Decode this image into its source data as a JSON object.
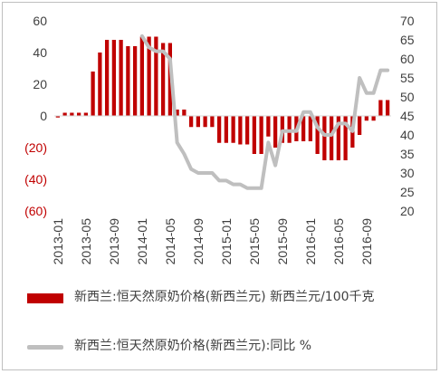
{
  "chart_data": {
    "type": "bar",
    "categories": [
      "2013-01",
      "2013-02",
      "2013-03",
      "2013-04",
      "2013-05",
      "2013-06",
      "2013-07",
      "2013-08",
      "2013-09",
      "2013-10",
      "2013-11",
      "2013-12",
      "2014-01",
      "2014-02",
      "2014-03",
      "2014-04",
      "2014-05",
      "2014-06",
      "2014-07",
      "2014-08",
      "2014-09",
      "2014-10",
      "2014-11",
      "2014-12",
      "2015-01",
      "2015-02",
      "2015-03",
      "2015-04",
      "2015-05",
      "2015-06",
      "2015-07",
      "2015-08",
      "2015-09",
      "2015-10",
      "2015-11",
      "2015-12",
      "2016-01",
      "2016-02",
      "2016-03",
      "2016-04",
      "2016-05",
      "2016-06",
      "2016-07",
      "2016-08",
      "2016-09",
      "2016-10",
      "2016-11",
      "2016-12"
    ],
    "x_tick_labels": [
      "2013-01",
      "2013-05",
      "2013-09",
      "2014-01",
      "2014-05",
      "2014-09",
      "2015-01",
      "2015-05",
      "2015-09",
      "2016-01",
      "2016-05",
      "2016-09"
    ],
    "series": [
      {
        "name": "新西兰:恒天然原奶价格(新西兰元) 新西兰元/100千克",
        "type": "bar",
        "axis": "left",
        "color": "#c00000",
        "values": [
          -1,
          2,
          2,
          2,
          2,
          28,
          40,
          48,
          48,
          48,
          44,
          44,
          50,
          50,
          50,
          46,
          46,
          4,
          4,
          -7,
          -7,
          -7,
          -7,
          -17,
          -17,
          -17,
          -18,
          -18,
          -24,
          -24,
          -13,
          -20,
          -17,
          -17,
          -16,
          -16,
          -16,
          -24,
          -28,
          -28,
          -28,
          -28,
          -20,
          -12,
          -3,
          -3,
          10,
          10
        ]
      },
      {
        "name": "新西兰:恒天然原奶价格(新西兰元):同比 %",
        "type": "line",
        "axis": "right",
        "color": "#bfbfbf",
        "values": [
          null,
          null,
          null,
          null,
          null,
          null,
          null,
          null,
          null,
          null,
          null,
          null,
          66,
          63,
          62,
          62,
          60,
          38,
          35,
          31,
          30,
          30,
          30,
          28,
          28,
          27,
          27,
          26,
          26,
          26,
          38,
          32,
          41,
          41,
          41,
          46,
          46,
          42,
          40,
          40,
          43,
          43,
          41,
          55,
          51,
          51,
          57,
          57
        ]
      }
    ],
    "left_axis": {
      "ylim": [
        -60,
        60
      ],
      "ticks": [
        60,
        40,
        20,
        0,
        -20,
        -40,
        -60
      ],
      "tick_labels": [
        "60",
        "40",
        "20",
        "0",
        "(20)",
        "(40)",
        "(60)"
      ]
    },
    "right_axis": {
      "ylim": [
        20,
        70
      ],
      "ticks": [
        70,
        65,
        60,
        55,
        50,
        45,
        40,
        35,
        30,
        25,
        20
      ],
      "tick_labels": [
        "70",
        "65",
        "60",
        "55",
        "50",
        "45",
        "40",
        "35",
        "30",
        "25",
        "20"
      ]
    },
    "title": "",
    "grid": false,
    "legend_position": "bottom"
  }
}
